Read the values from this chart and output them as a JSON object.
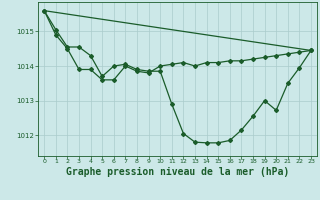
{
  "background_color": "#cce8e8",
  "grid_color": "#aacccc",
  "line_color": "#1a5c2a",
  "title": "Graphe pression niveau de la mer (hPa)",
  "title_fontsize": 7,
  "xlim": [
    -0.5,
    23.5
  ],
  "ylim": [
    1011.4,
    1015.85
  ],
  "yticks": [
    1012,
    1013,
    1014,
    1015
  ],
  "xticks": [
    0,
    1,
    2,
    3,
    4,
    5,
    6,
    7,
    8,
    9,
    10,
    11,
    12,
    13,
    14,
    15,
    16,
    17,
    18,
    19,
    20,
    21,
    22,
    23
  ],
  "series1_x": [
    0,
    1,
    2,
    3,
    4,
    5,
    6,
    7,
    8,
    9,
    10,
    11,
    12,
    13,
    14,
    15,
    16,
    17,
    18,
    19,
    20,
    21,
    22,
    23
  ],
  "series1_y": [
    1015.6,
    1014.9,
    1014.5,
    1013.9,
    1013.9,
    1013.6,
    1013.6,
    1014.0,
    1013.85,
    1013.8,
    1014.0,
    1014.05,
    1014.1,
    1014.0,
    1014.1,
    1014.1,
    1014.15,
    1014.15,
    1014.2,
    1014.25,
    1014.3,
    1014.35,
    1014.4,
    1014.45
  ],
  "series2_x": [
    0,
    1,
    2,
    3,
    4,
    5,
    6,
    7,
    8,
    9,
    10,
    11,
    12,
    13,
    14,
    15,
    16,
    17,
    18,
    19,
    20,
    21,
    22,
    23
  ],
  "series2_y": [
    1015.6,
    1015.05,
    1014.55,
    1014.55,
    1014.3,
    1013.7,
    1014.0,
    1014.05,
    1013.9,
    1013.85,
    1013.85,
    1012.9,
    1012.05,
    1011.8,
    1011.78,
    1011.78,
    1011.85,
    1012.15,
    1012.55,
    1013.0,
    1012.72,
    1013.5,
    1013.95,
    1014.45
  ],
  "series3_x": [
    0,
    23
  ],
  "series3_y": [
    1015.6,
    1014.45
  ],
  "marker_size": 2.0,
  "linewidth": 0.9
}
